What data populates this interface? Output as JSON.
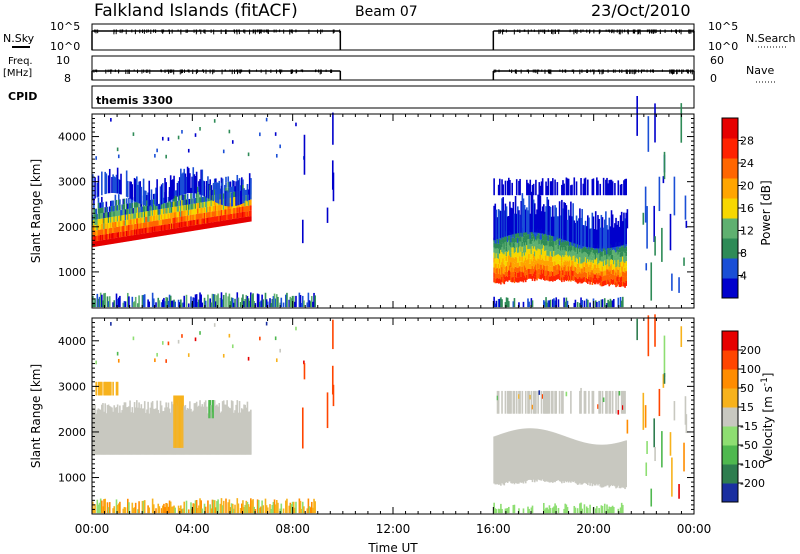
{
  "header": {
    "station": "Falkland Islands (fitACF)",
    "beam": "Beam 07",
    "date": "23/Oct/2010"
  },
  "side_labels": {
    "nsky": "N.Sky",
    "nsearch": "N.Search",
    "freq": "Freq.",
    "freq_unit": "[MHz]",
    "nave": "Nave",
    "cpid": "CPID",
    "cpid_value": "themis 3300"
  },
  "strip_ticks": {
    "noise_top_left": "10^5",
    "noise_bottom_left": "10^0",
    "noise_top_right": "10^5",
    "noise_bottom_right": "10^0",
    "freq_top": "10",
    "freq_bottom": "8",
    "nave_top": "60",
    "nave_bottom": "0"
  },
  "chart_data": [
    {
      "type": "heatmap",
      "name": "power",
      "ylabel": "Slant Range [km]",
      "x_ticks": [
        "00:00",
        "04:00",
        "08:00",
        "12:00",
        "16:00",
        "20:00",
        "00:00"
      ],
      "y_ticks": [
        "1000",
        "2000",
        "3000",
        "4000"
      ],
      "ylim": [
        200,
        4500
      ],
      "data_gap_hours": [
        8.9,
        16.0
      ],
      "colorbar": {
        "label": "Power [dB]",
        "ticks": [
          "28",
          "24",
          "20",
          "16",
          "12",
          "8",
          "4"
        ],
        "range": [
          0,
          32
        ],
        "colors": [
          "#0000cc",
          "#1a4fd6",
          "#2e8b57",
          "#5fb070",
          "#f7d700",
          "#ffa500",
          "#ff6600",
          "#ff2200",
          "#e60000"
        ]
      }
    },
    {
      "type": "heatmap",
      "name": "velocity",
      "xlabel": "Time UT",
      "ylabel": "Slant Range [km]",
      "x_ticks": [
        "00:00",
        "04:00",
        "08:00",
        "12:00",
        "16:00",
        "20:00",
        "00:00"
      ],
      "y_ticks": [
        "1000",
        "2000",
        "3000",
        "4000"
      ],
      "ylim": [
        200,
        4500
      ],
      "colorbar": {
        "label": "Velocity [m s^-1]",
        "ticks": [
          "200",
          "100",
          "50",
          "15",
          "-15",
          "-50",
          "-100",
          "-200"
        ],
        "colors": [
          "#1a2fa0",
          "#2e7d4f",
          "#4fb84f",
          "#8ede72",
          "#c8c8c0",
          "#f7b21c",
          "#ff8c00",
          "#ff4500",
          "#e60000"
        ]
      }
    }
  ],
  "colors": {
    "ground_scatter": "#c8c8c0",
    "axis": "#000000"
  }
}
